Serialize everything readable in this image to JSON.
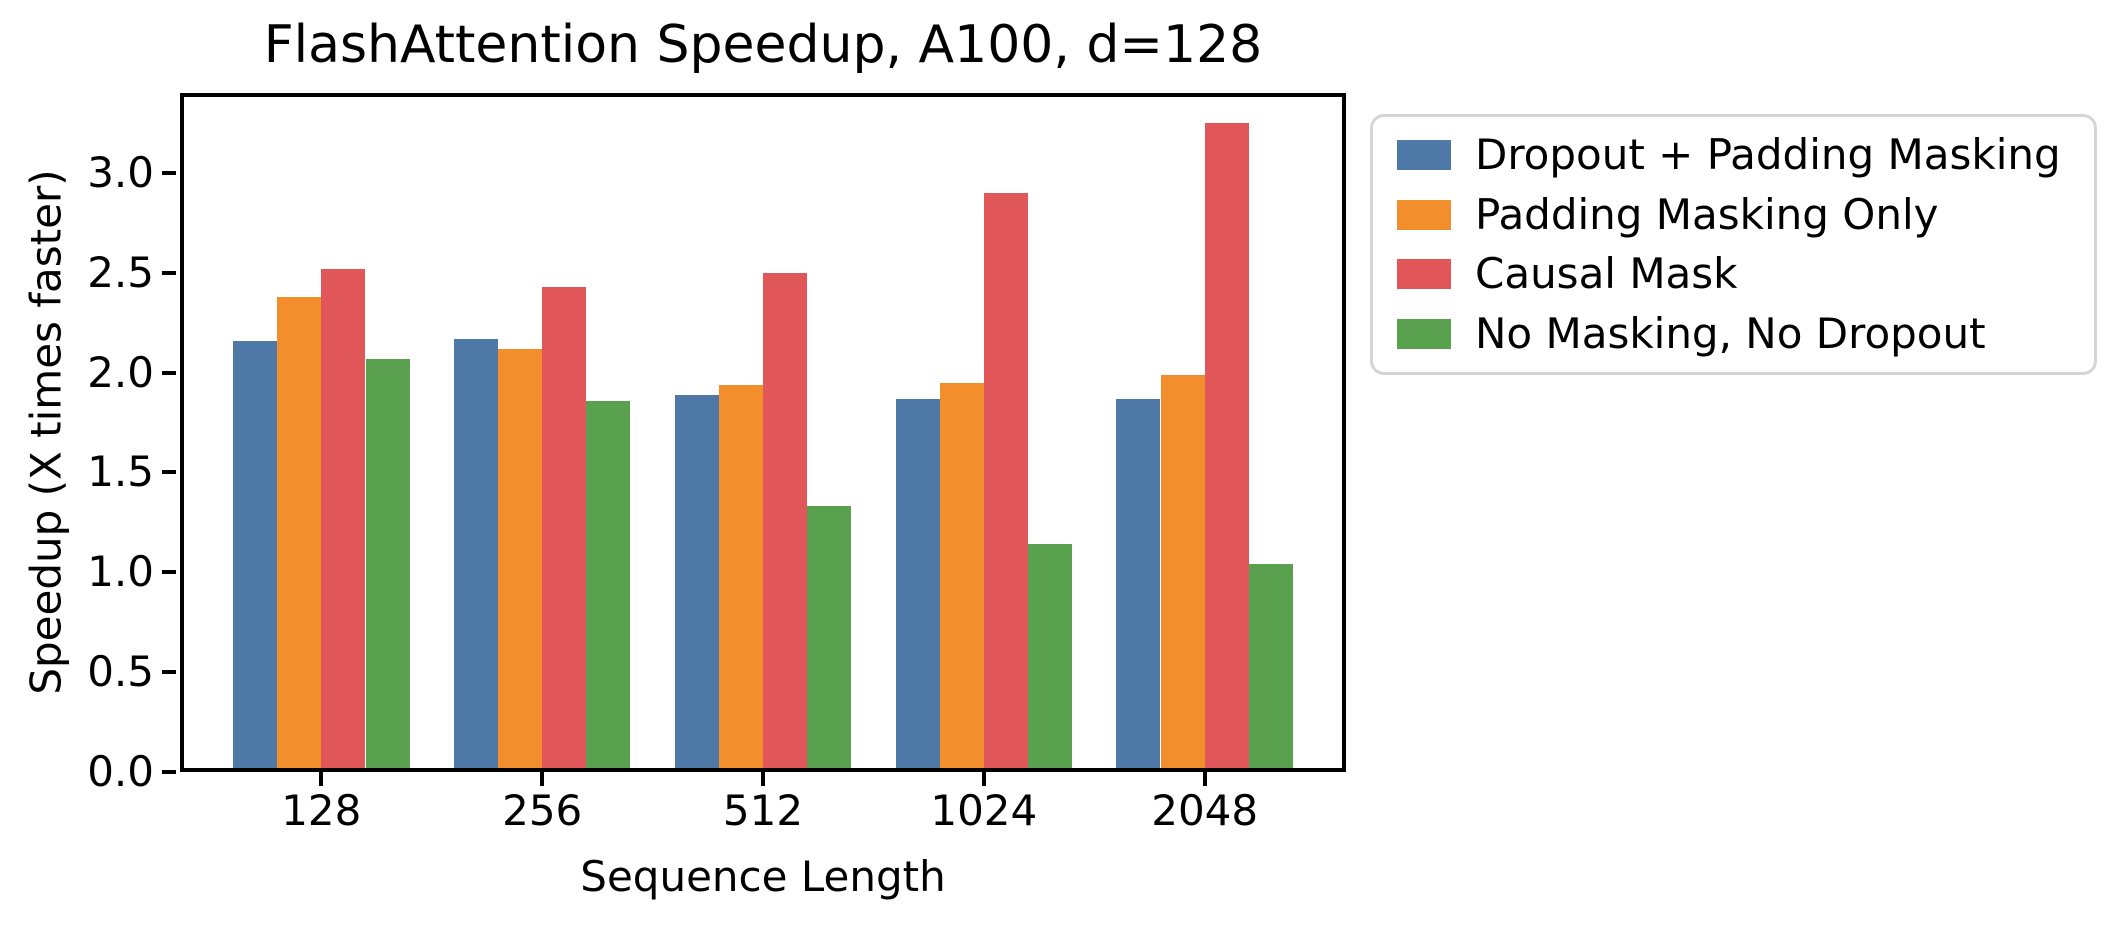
{
  "chart_data": {
    "type": "bar",
    "title": "FlashAttention Speedup, A100, d=128",
    "xlabel": "Sequence Length",
    "ylabel": "Speedup (X times faster)",
    "categories": [
      "128",
      "256",
      "512",
      "1024",
      "2048"
    ],
    "series": [
      {
        "name": "Dropout + Padding Masking",
        "color": "#4E79A7",
        "values": [
          2.16,
          2.17,
          1.89,
          1.87,
          1.87
        ]
      },
      {
        "name": "Padding Masking Only",
        "color": "#F28E2B",
        "values": [
          2.38,
          2.12,
          1.94,
          1.95,
          1.99
        ]
      },
      {
        "name": "Causal Mask",
        "color": "#E15759",
        "values": [
          2.52,
          2.43,
          2.5,
          2.9,
          3.25
        ]
      },
      {
        "name": "No Masking, No Dropout",
        "color": "#59A14F",
        "values": [
          2.07,
          1.86,
          1.33,
          1.14,
          1.04
        ]
      }
    ],
    "ylim": [
      0,
      3.4
    ],
    "yticks": [
      0.0,
      0.5,
      1.0,
      1.5,
      2.0,
      2.5,
      3.0
    ],
    "ytick_labels": [
      "0.0",
      "0.5",
      "1.0",
      "1.5",
      "2.0",
      "2.5",
      "3.0"
    ],
    "grid": false,
    "legend_position": "outside-right",
    "bar_group_width": 0.8,
    "colors": {
      "axis": "#000000",
      "background": "#ffffff",
      "legend_border": "#d5d5d5"
    }
  }
}
